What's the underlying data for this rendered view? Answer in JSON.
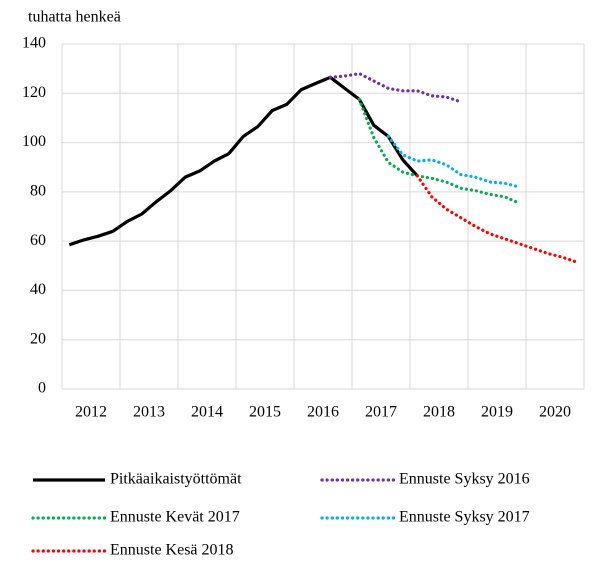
{
  "chart_data": {
    "type": "line",
    "y_axis_label": "tuhatta henkeä",
    "x": [
      2012.125,
      2012.375,
      2012.625,
      2012.875,
      2013.125,
      2013.375,
      2013.625,
      2013.875,
      2014.125,
      2014.375,
      2014.625,
      2014.875,
      2015.125,
      2015.375,
      2015.625,
      2015.875,
      2016.125,
      2016.375,
      2016.625,
      2016.875,
      2017.125,
      2017.375,
      2017.625,
      2017.875,
      2018.125,
      2018.375,
      2018.625,
      2018.875,
      2019.125,
      2019.375,
      2019.625,
      2019.875,
      2020.125,
      2020.375,
      2020.625,
      2020.875
    ],
    "xlim": [
      2012,
      2021
    ],
    "xgrid": [
      2012,
      2013,
      2014,
      2015,
      2016,
      2017,
      2018,
      2019,
      2020,
      2021
    ],
    "xticks": [
      {
        "value": 2012.5,
        "label": "2012"
      },
      {
        "value": 2013.5,
        "label": "2013"
      },
      {
        "value": 2014.5,
        "label": "2014"
      },
      {
        "value": 2015.5,
        "label": "2015"
      },
      {
        "value": 2016.5,
        "label": "2016"
      },
      {
        "value": 2017.5,
        "label": "2017"
      },
      {
        "value": 2018.5,
        "label": "2018"
      },
      {
        "value": 2019.5,
        "label": "2019"
      },
      {
        "value": 2020.5,
        "label": "2020"
      }
    ],
    "ylim": [
      0,
      140
    ],
    "yticks": [
      0,
      20,
      40,
      60,
      80,
      100,
      120,
      140
    ],
    "grid": true,
    "series": [
      {
        "name": "Pitkäaikaistyöttömät",
        "color": "#000000",
        "style": "solid",
        "values": [
          58.5,
          60.5,
          62,
          64,
          68,
          71,
          76,
          80.5,
          86,
          88.5,
          92.5,
          95.5,
          102.5,
          106.5,
          113,
          115.5,
          121.5,
          124,
          126.5,
          122,
          117.5,
          107,
          102.5,
          93,
          86.5,
          null,
          null,
          null,
          null,
          null,
          null,
          null,
          null,
          null,
          null,
          null
        ]
      },
      {
        "name": "Ennuste Syksy 2016",
        "color": "#7030a0",
        "style": "dotted",
        "values": [
          null,
          null,
          null,
          null,
          null,
          null,
          null,
          null,
          null,
          null,
          null,
          null,
          null,
          null,
          null,
          null,
          null,
          null,
          126.5,
          127,
          128,
          125,
          122,
          121,
          121,
          119,
          118.5,
          116.5,
          null,
          null,
          null,
          null,
          null,
          null,
          null,
          null
        ]
      },
      {
        "name": "Ennuste Kevät 2017",
        "color": "#00b050",
        "style": "dotted",
        "values": [
          null,
          null,
          null,
          null,
          null,
          null,
          null,
          null,
          null,
          null,
          null,
          null,
          null,
          null,
          null,
          null,
          null,
          null,
          null,
          null,
          117.5,
          102,
          92,
          88,
          86.5,
          85.5,
          84,
          81.5,
          80.5,
          79,
          78,
          75.5,
          null,
          null,
          null,
          null
        ]
      },
      {
        "name": "Ennuste Syksy 2017",
        "color": "#00b0f0",
        "style": "dotted",
        "values": [
          null,
          null,
          null,
          null,
          null,
          null,
          null,
          null,
          null,
          null,
          null,
          null,
          null,
          null,
          null,
          null,
          null,
          null,
          null,
          null,
          null,
          null,
          102.5,
          95,
          92.5,
          93,
          91,
          87,
          86,
          84,
          83.5,
          82,
          null,
          null,
          null,
          null
        ]
      },
      {
        "name": "Ennuste Kesä 2018",
        "color": "#ff0000",
        "style": "dotted",
        "values": [
          null,
          null,
          null,
          null,
          null,
          null,
          null,
          null,
          null,
          null,
          null,
          null,
          null,
          null,
          null,
          null,
          null,
          null,
          null,
          null,
          null,
          null,
          null,
          null,
          86.5,
          78,
          73,
          69.5,
          66,
          63,
          61,
          59,
          57,
          55,
          53.5,
          51.5
        ]
      }
    ]
  }
}
